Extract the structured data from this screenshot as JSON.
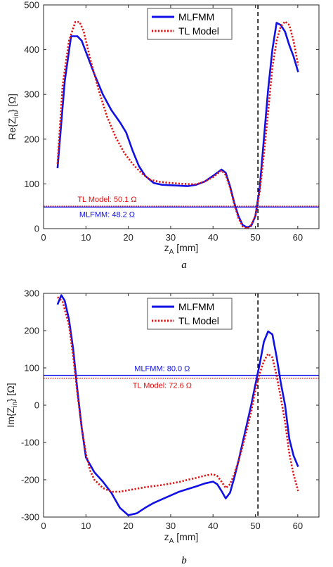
{
  "colors": {
    "mlfmm": "#1010e6",
    "tl": "#e01010",
    "vline": "#000000"
  },
  "chart_data": [
    {
      "type": "line",
      "panel_label": "a",
      "title": "",
      "xlabel_main": "z",
      "xlabel_sub": "A",
      "xlabel_unit": " [mm]",
      "ylabel_main": "Re{Z",
      "ylabel_sub": "in",
      "ylabel_unit": "} [Ω]",
      "xlim": [
        0,
        65
      ],
      "ylim": [
        0,
        500
      ],
      "xticks": [
        "0",
        "10",
        "20",
        "30",
        "40",
        "50",
        "60"
      ],
      "yticks": [
        "0",
        "100",
        "200",
        "300",
        "400",
        "500"
      ],
      "legend": {
        "position": "top-center",
        "entries": [
          "MLFMM",
          "TL Model"
        ]
      },
      "vline_x": 50.6,
      "hlines": [
        {
          "series": "tl",
          "value": 50.1,
          "label": "TL Model: 50.1 Ω"
        },
        {
          "series": "mlfmm",
          "value": 48.2,
          "label": "MLFMM: 48.2 Ω"
        }
      ],
      "series": [
        {
          "name": "MLFMM",
          "style": "solid",
          "x": [
            3.3,
            5,
            6.5,
            8,
            9,
            10,
            12,
            14,
            16,
            18,
            19.5,
            21,
            22.5,
            24,
            26,
            28,
            30,
            32,
            34,
            36,
            38,
            40,
            42,
            43,
            44,
            45,
            46,
            47,
            48,
            49,
            50,
            51,
            52,
            53,
            54,
            55,
            56,
            57,
            58,
            59,
            60.1
          ],
          "y": [
            135,
            330,
            430,
            430,
            420,
            395,
            345,
            300,
            265,
            238,
            215,
            175,
            140,
            118,
            102,
            98,
            97,
            96,
            95,
            98,
            105,
            118,
            132,
            125,
            95,
            58,
            28,
            8,
            3,
            6,
            28,
            90,
            200,
            310,
            400,
            460,
            455,
            440,
            410,
            385,
            350
          ]
        },
        {
          "name": "TL Model",
          "style": "dotted",
          "x": [
            3.3,
            4.5,
            6,
            7.5,
            8.5,
            9.5,
            11,
            13,
            15,
            17,
            19,
            21,
            23,
            25,
            27,
            30,
            33,
            36,
            38,
            40,
            42,
            43,
            44,
            45,
            46,
            47,
            48,
            49,
            50,
            51,
            52,
            53,
            54,
            55,
            56,
            57,
            58,
            59,
            60.1
          ],
          "y": [
            145,
            320,
            420,
            462,
            462,
            440,
            380,
            310,
            250,
            205,
            170,
            145,
            125,
            110,
            105,
            102,
            100,
            99,
            105,
            115,
            130,
            120,
            92,
            55,
            24,
            5,
            0,
            8,
            28,
            82,
            165,
            260,
            360,
            420,
            452,
            463,
            455,
            420,
            365
          ]
        }
      ]
    },
    {
      "type": "line",
      "panel_label": "b",
      "title": "",
      "xlabel_main": "z",
      "xlabel_sub": "A",
      "xlabel_unit": " [mm]",
      "ylabel_main": "Im{Z",
      "ylabel_sub": "in",
      "ylabel_unit": "} [Ω]",
      "xlim": [
        0,
        65
      ],
      "ylim": [
        -300,
        300
      ],
      "xticks": [
        "0",
        "10",
        "20",
        "30",
        "40",
        "50",
        "60"
      ],
      "yticks": [
        "-300",
        "-200",
        "-100",
        "0",
        "100",
        "200",
        "300"
      ],
      "legend": {
        "position": "top-center",
        "entries": [
          "MLFMM",
          "TL Model"
        ]
      },
      "vline_x": 50.6,
      "hlines": [
        {
          "series": "mlfmm",
          "value": 80.0,
          "label": "MLFMM: 80.0 Ω"
        },
        {
          "series": "tl",
          "value": 72.6,
          "label": "TL Model: 72.6 Ω"
        }
      ],
      "series": [
        {
          "name": "MLFMM",
          "style": "solid",
          "x": [
            3.3,
            4.2,
            5,
            6,
            7,
            8,
            9,
            10,
            12,
            14,
            16,
            18,
            20,
            22,
            24,
            26,
            28,
            30,
            32,
            34,
            36,
            38,
            40,
            41,
            42,
            43,
            44,
            45,
            46,
            47,
            48,
            49,
            50,
            51,
            52,
            53,
            54,
            55,
            56,
            57,
            58,
            59,
            60.1
          ],
          "y": [
            270,
            295,
            280,
            230,
            150,
            40,
            -60,
            -140,
            -180,
            -205,
            -235,
            -275,
            -295,
            -290,
            -275,
            -262,
            -252,
            -242,
            -232,
            -225,
            -218,
            -210,
            -205,
            -212,
            -230,
            -250,
            -235,
            -195,
            -150,
            -100,
            -50,
            0,
            55,
            110,
            170,
            198,
            190,
            130,
            60,
            0,
            -90,
            -135,
            -165
          ]
        },
        {
          "name": "TL Model",
          "style": "dotted",
          "x": [
            3.3,
            4.5,
            6,
            7,
            8,
            9,
            10,
            11,
            12,
            14,
            16,
            18,
            20,
            22,
            24,
            26,
            28,
            30,
            32,
            34,
            36,
            38,
            40,
            41,
            42,
            43,
            44,
            45,
            46,
            47,
            48,
            49,
            50,
            51,
            52,
            53,
            54,
            55,
            56,
            57,
            58,
            59,
            60.1
          ],
          "y": [
            290,
            278,
            215,
            130,
            30,
            -60,
            -130,
            -175,
            -200,
            -222,
            -232,
            -232,
            -228,
            -224,
            -220,
            -217,
            -214,
            -210,
            -206,
            -200,
            -195,
            -189,
            -185,
            -190,
            -205,
            -222,
            -212,
            -185,
            -150,
            -110,
            -65,
            -18,
            40,
            85,
            118,
            138,
            128,
            80,
            20,
            -45,
            -130,
            -185,
            -230
          ]
        }
      ]
    }
  ]
}
